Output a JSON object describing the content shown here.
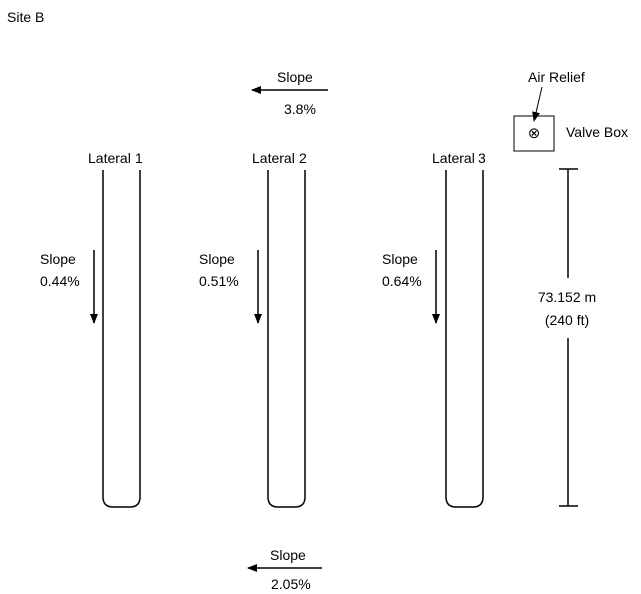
{
  "site_label": "Site B",
  "top_slope": {
    "label": "Slope",
    "value": "3.8%"
  },
  "bottom_slope": {
    "label": "Slope",
    "value": "2.05%"
  },
  "laterals": [
    {
      "name": "Lateral",
      "number": "1",
      "slope_label": "Slope",
      "slope_value": "0.44%"
    },
    {
      "name": "Lateral",
      "number": "2",
      "slope_label": "Slope",
      "slope_value": "0.51%"
    },
    {
      "name": "Lateral",
      "number": "3",
      "slope_label": "Slope",
      "slope_value": "0.64%"
    }
  ],
  "air_relief_label": "Air Relief",
  "valve_box_label": "Valve Box",
  "valve_symbol": "⊗",
  "dimension": {
    "metric": "73.152 m",
    "imperial": "(240 ft)"
  }
}
